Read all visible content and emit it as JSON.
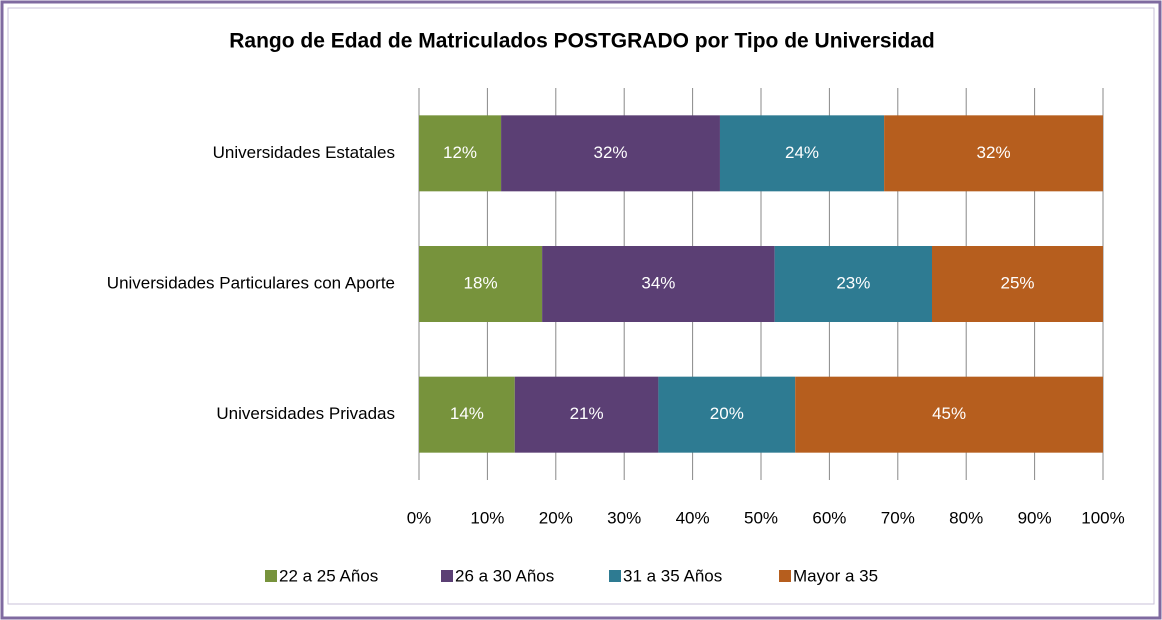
{
  "chart_data": {
    "type": "bar",
    "orientation": "horizontal",
    "stacked": true,
    "title": "Rango de Edad de Matriculados POSTGRADO por Tipo de Universidad",
    "categories": [
      "Universidades Estatales",
      "Universidades Particulares con Aporte",
      "Universidades Privadas"
    ],
    "series": [
      {
        "name": "22 a 25 Años",
        "color": "#77933c",
        "values": [
          12,
          18,
          14
        ],
        "value_labels": [
          "12%",
          "18%",
          "14%"
        ]
      },
      {
        "name": "26 a 30 Años",
        "color": "#5b3f74",
        "values": [
          32,
          34,
          21
        ],
        "value_labels": [
          "32%",
          "34%",
          "21%"
        ]
      },
      {
        "name": "31 a 35 Años",
        "color": "#2e7b92",
        "values": [
          24,
          23,
          20
        ],
        "value_labels": [
          "24%",
          "23%",
          "20%"
        ]
      },
      {
        "name": "Mayor a 35",
        "color": "#b65e1e",
        "values": [
          32,
          25,
          45
        ],
        "value_labels": [
          "32%",
          "25%",
          "45%"
        ]
      }
    ],
    "xlim": [
      0,
      100
    ],
    "xticks": [
      {
        "value": 0,
        "label": "0%"
      },
      {
        "value": 10,
        "label": "10%"
      },
      {
        "value": 20,
        "label": "20%"
      },
      {
        "value": 30,
        "label": "30%"
      },
      {
        "value": 40,
        "label": "40%"
      },
      {
        "value": 50,
        "label": "50%"
      },
      {
        "value": 60,
        "label": "60%"
      },
      {
        "value": 70,
        "label": "70%"
      },
      {
        "value": 80,
        "label": "80%"
      },
      {
        "value": 90,
        "label": "90%"
      },
      {
        "value": 100,
        "label": "100%"
      }
    ],
    "grid": true,
    "legend": "bottom"
  }
}
